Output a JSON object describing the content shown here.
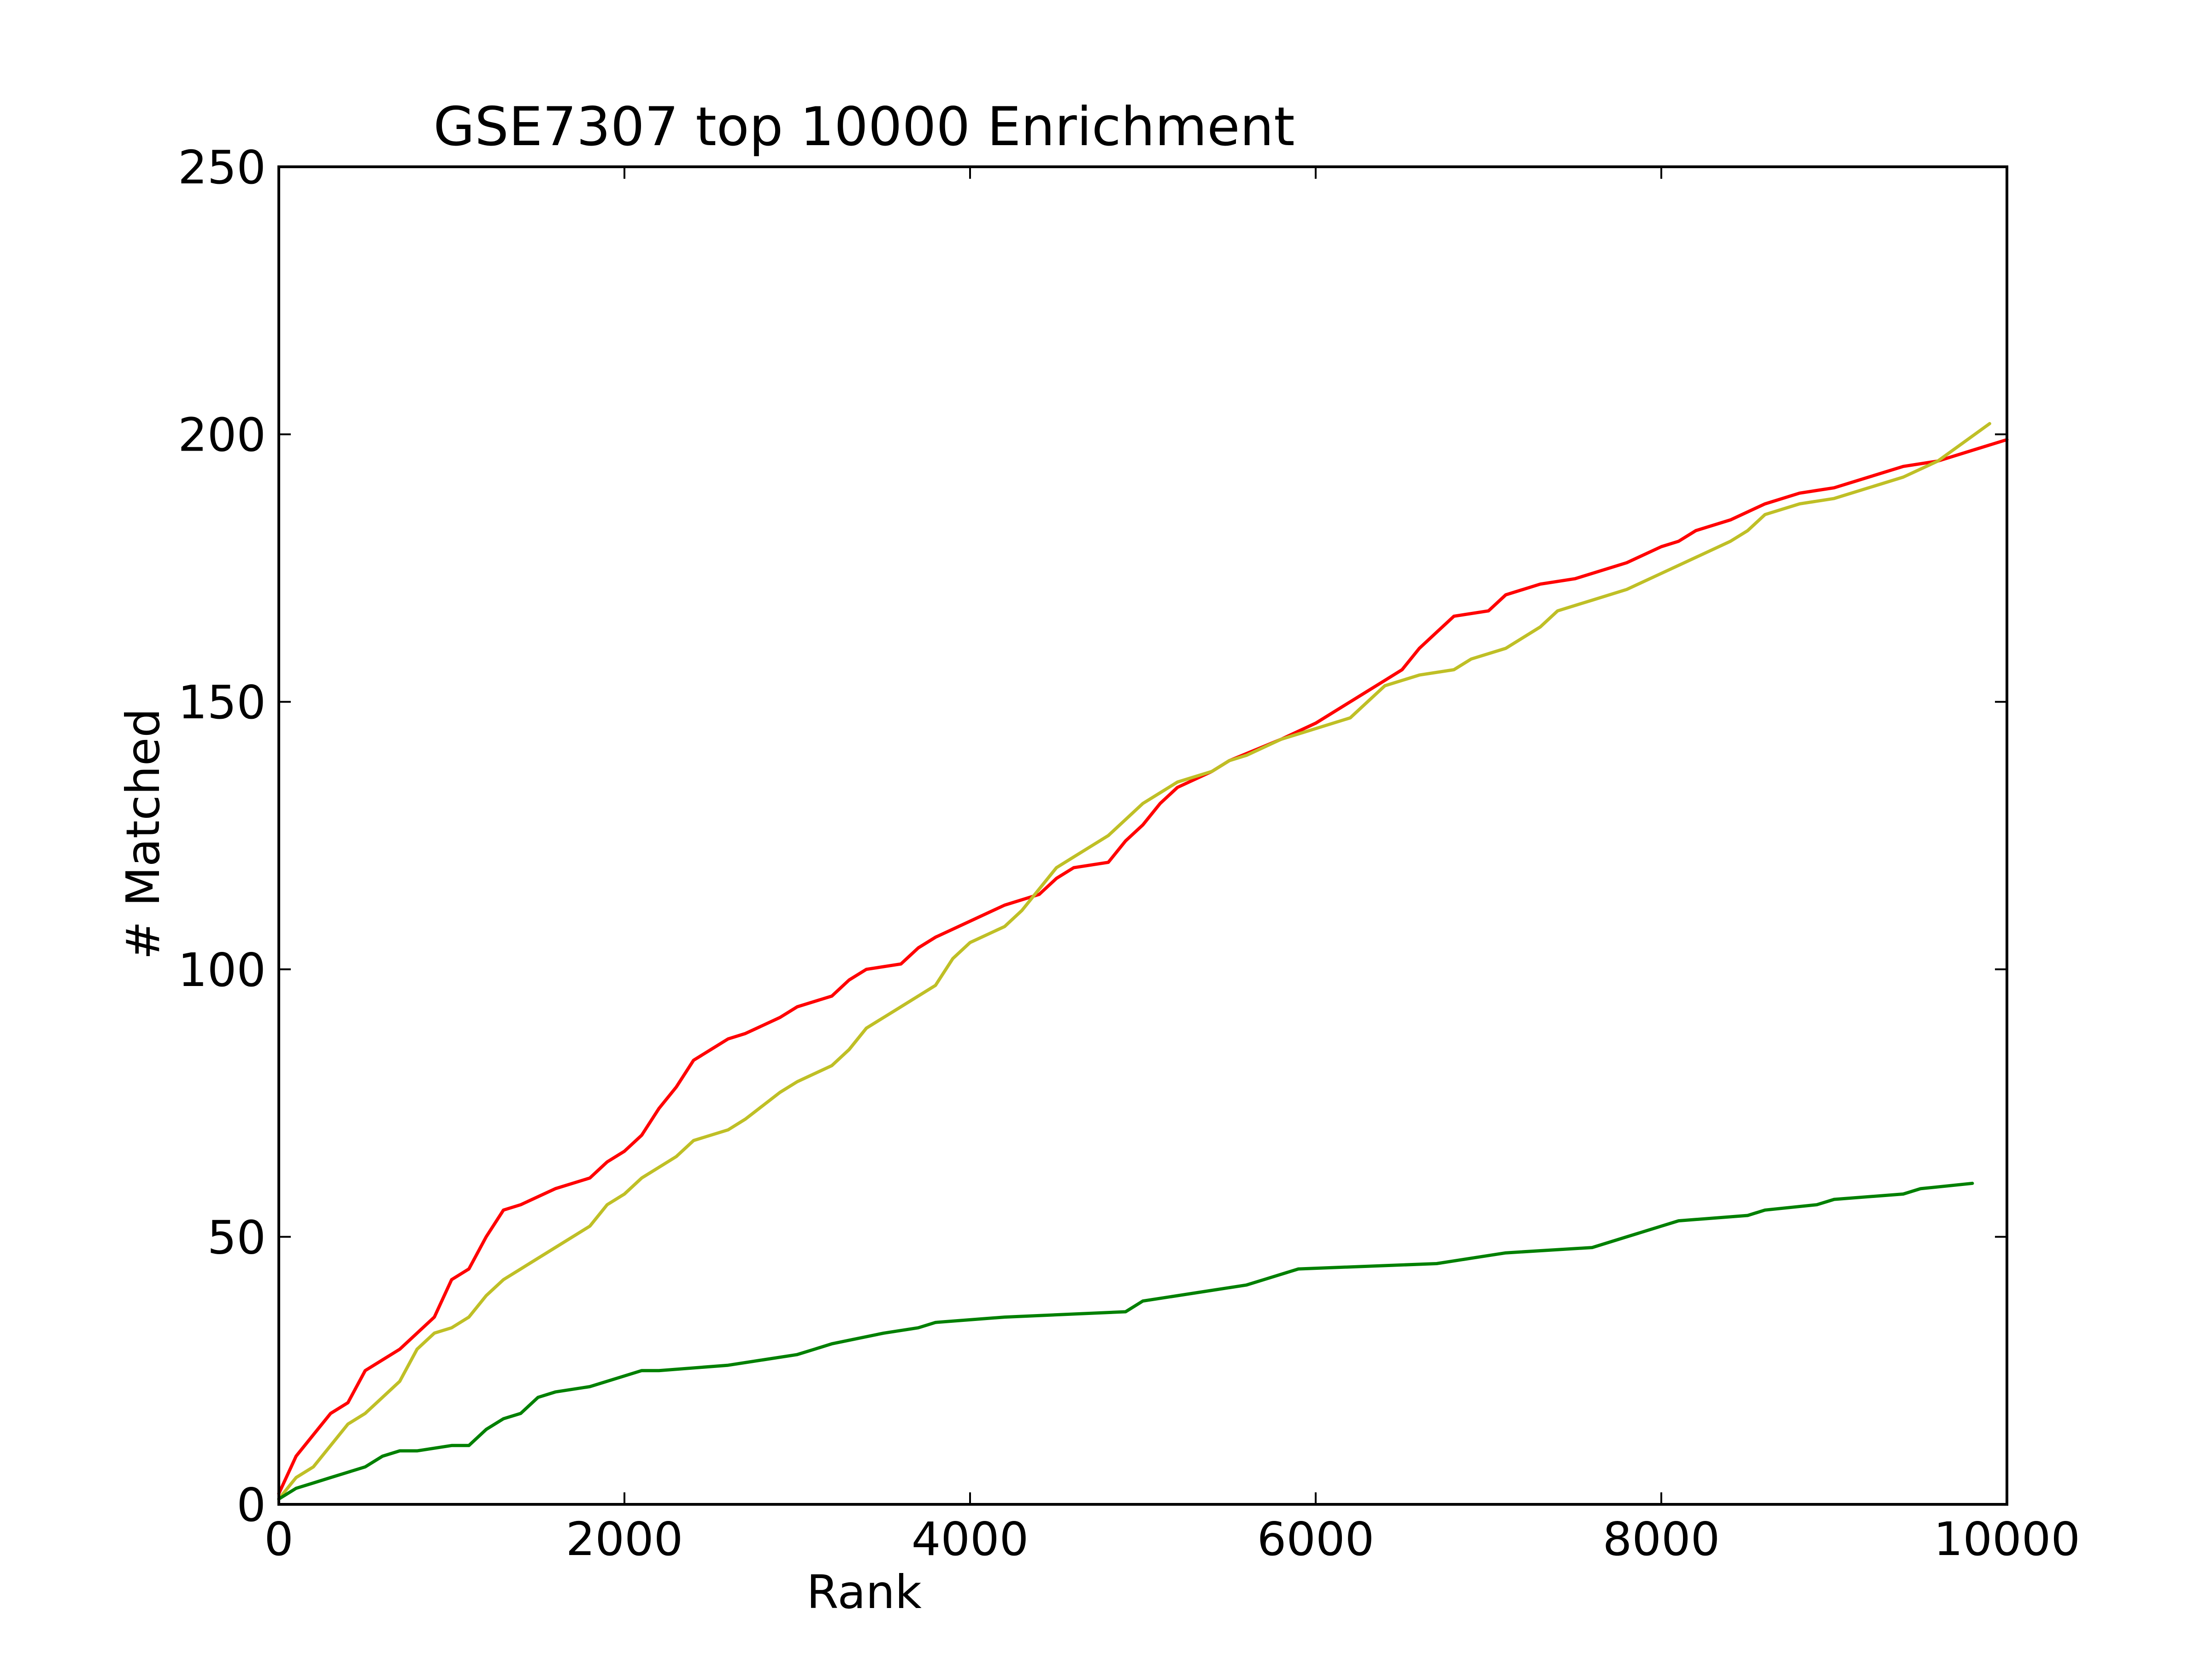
{
  "chart_data": {
    "type": "line",
    "title": "GSE7307 top 10000 Enrichment",
    "xlabel": "Rank",
    "ylabel": "# Matched",
    "xlim": [
      0,
      10000
    ],
    "ylim": [
      0,
      250
    ],
    "x_ticks": [
      "0",
      "2000",
      "4000",
      "6000",
      "8000",
      "10000"
    ],
    "y_ticks": [
      "0",
      "50",
      "100",
      "150",
      "200",
      "250"
    ],
    "grid": false,
    "legend": "none",
    "series": [
      {
        "color": "#ff0000",
        "x": [
          0,
          100,
          200,
          300,
          400,
          500,
          600,
          700,
          800,
          900,
          1000,
          1100,
          1200,
          1300,
          1400,
          1600,
          1800,
          1900,
          2000,
          2100,
          2200,
          2300,
          2400,
          2500,
          2600,
          2700,
          2900,
          3000,
          3200,
          3300,
          3400,
          3600,
          3700,
          3800,
          4000,
          4200,
          4400,
          4500,
          4600,
          4800,
          4900,
          5000,
          5100,
          5200,
          5400,
          5500,
          5800,
          6000,
          6100,
          6200,
          6300,
          6400,
          6500,
          6600,
          6700,
          6800,
          7000,
          7100,
          7300,
          7500,
          7800,
          8000,
          8100,
          8200,
          8400,
          8600,
          8800,
          9000,
          9200,
          9400,
          9600,
          9800,
          10000
        ],
        "values": [
          2,
          9,
          13,
          17,
          19,
          25,
          27,
          29,
          32,
          35,
          42,
          44,
          50,
          55,
          56,
          59,
          61,
          64,
          66,
          69,
          74,
          78,
          83,
          85,
          87,
          88,
          91,
          93,
          95,
          98,
          100,
          101,
          104,
          106,
          109,
          112,
          114,
          117,
          119,
          120,
          124,
          127,
          131,
          134,
          137,
          139,
          143,
          146,
          148,
          150,
          152,
          154,
          156,
          160,
          163,
          166,
          167,
          170,
          172,
          173,
          176,
          179,
          180,
          182,
          184,
          187,
          189,
          190,
          192,
          194,
          195,
          197,
          199
        ]
      },
      {
        "color": "#bfbf26",
        "x": [
          0,
          100,
          200,
          300,
          400,
          500,
          600,
          700,
          800,
          900,
          1000,
          1100,
          1200,
          1300,
          1400,
          1600,
          1800,
          1900,
          2000,
          2100,
          2300,
          2400,
          2600,
          2700,
          2900,
          3000,
          3200,
          3300,
          3400,
          3500,
          3600,
          3800,
          3900,
          4000,
          4200,
          4300,
          4400,
          4500,
          4600,
          4700,
          4800,
          4900,
          5000,
          5100,
          5200,
          5400,
          5500,
          5600,
          5800,
          6000,
          6200,
          6300,
          6400,
          6600,
          6800,
          6900,
          7100,
          7200,
          7300,
          7400,
          7600,
          7800,
          8000,
          8200,
          8400,
          8500,
          8600,
          8800,
          9000,
          9200,
          9400,
          9600,
          9900
        ],
        "values": [
          1,
          5,
          7,
          11,
          15,
          17,
          20,
          23,
          29,
          32,
          33,
          35,
          39,
          42,
          44,
          48,
          52,
          56,
          58,
          61,
          65,
          68,
          70,
          72,
          77,
          79,
          82,
          85,
          89,
          91,
          93,
          97,
          102,
          105,
          108,
          111,
          115,
          119,
          121,
          123,
          125,
          128,
          131,
          133,
          135,
          137,
          139,
          140,
          143,
          145,
          147,
          150,
          153,
          155,
          156,
          158,
          160,
          162,
          164,
          167,
          169,
          171,
          174,
          177,
          180,
          182,
          185,
          187,
          188,
          190,
          192,
          195,
          202
        ]
      },
      {
        "color": "#008000",
        "x": [
          0,
          100,
          200,
          300,
          400,
          500,
          600,
          700,
          800,
          1000,
          1100,
          1200,
          1300,
          1400,
          1500,
          1600,
          1800,
          2000,
          2100,
          2200,
          2600,
          2800,
          3000,
          3100,
          3200,
          3500,
          3700,
          3800,
          4200,
          4900,
          5000,
          5400,
          5600,
          5700,
          5900,
          6700,
          6900,
          7100,
          7600,
          7800,
          8000,
          8100,
          8500,
          8600,
          8900,
          9000,
          9400,
          9500,
          9800
        ],
        "values": [
          1,
          3,
          4,
          5,
          6,
          7,
          9,
          10,
          10,
          11,
          11,
          14,
          16,
          17,
          20,
          21,
          22,
          24,
          25,
          25,
          26,
          27,
          28,
          29,
          30,
          32,
          33,
          34,
          35,
          36,
          38,
          40,
          41,
          42,
          44,
          45,
          46,
          47,
          48,
          50,
          52,
          53,
          54,
          55,
          56,
          57,
          58,
          59,
          60
        ]
      }
    ]
  }
}
